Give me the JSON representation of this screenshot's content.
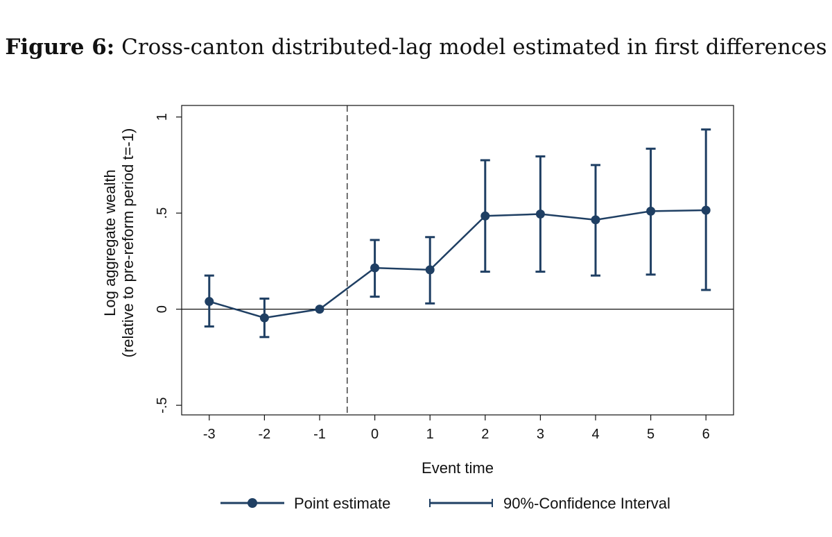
{
  "figure": {
    "label": "Figure 6:",
    "caption": "Cross-canton distributed-lag model estimated in first differences"
  },
  "chart_data": {
    "type": "line",
    "title": "Figure 6: Cross-canton distributed-lag model estimated in first differences",
    "xlabel": "Event time",
    "ylabel_line1": "Log aggregate wealth",
    "ylabel_line2": "(relative to pre-reform period t=-1)",
    "x": [
      -3,
      -2,
      -1,
      0,
      1,
      2,
      3,
      4,
      5,
      6
    ],
    "x_tick_labels": [
      "-3",
      "-2",
      "-1",
      "0",
      "1",
      "2",
      "3",
      "4",
      "5",
      "6"
    ],
    "y_ticks": [
      -0.5,
      0,
      0.5,
      1
    ],
    "y_tick_labels": [
      "-.5",
      "0",
      ".5",
      "1"
    ],
    "ylim": [
      -0.55,
      1.06
    ],
    "xlim": [
      -3.5,
      6.5
    ],
    "reference_vline_x": -0.5,
    "reference_hline_y": 0,
    "series": [
      {
        "name": "Point estimate",
        "values": [
          0.04,
          -0.045,
          0.0,
          0.215,
          0.205,
          0.485,
          0.495,
          0.465,
          0.51,
          0.515
        ]
      },
      {
        "name": "90%-Confidence Interval",
        "lower": [
          -0.09,
          -0.145,
          0.0,
          0.065,
          0.03,
          0.195,
          0.195,
          0.175,
          0.18,
          0.1
        ],
        "upper": [
          0.175,
          0.055,
          0.0,
          0.36,
          0.375,
          0.775,
          0.795,
          0.75,
          0.835,
          0.935
        ]
      }
    ],
    "legend": [
      "Point estimate",
      "90%-Confidence Interval"
    ],
    "legend_position": "bottom",
    "colors": {
      "series": "#1f3f63",
      "axis": "#111111"
    }
  }
}
